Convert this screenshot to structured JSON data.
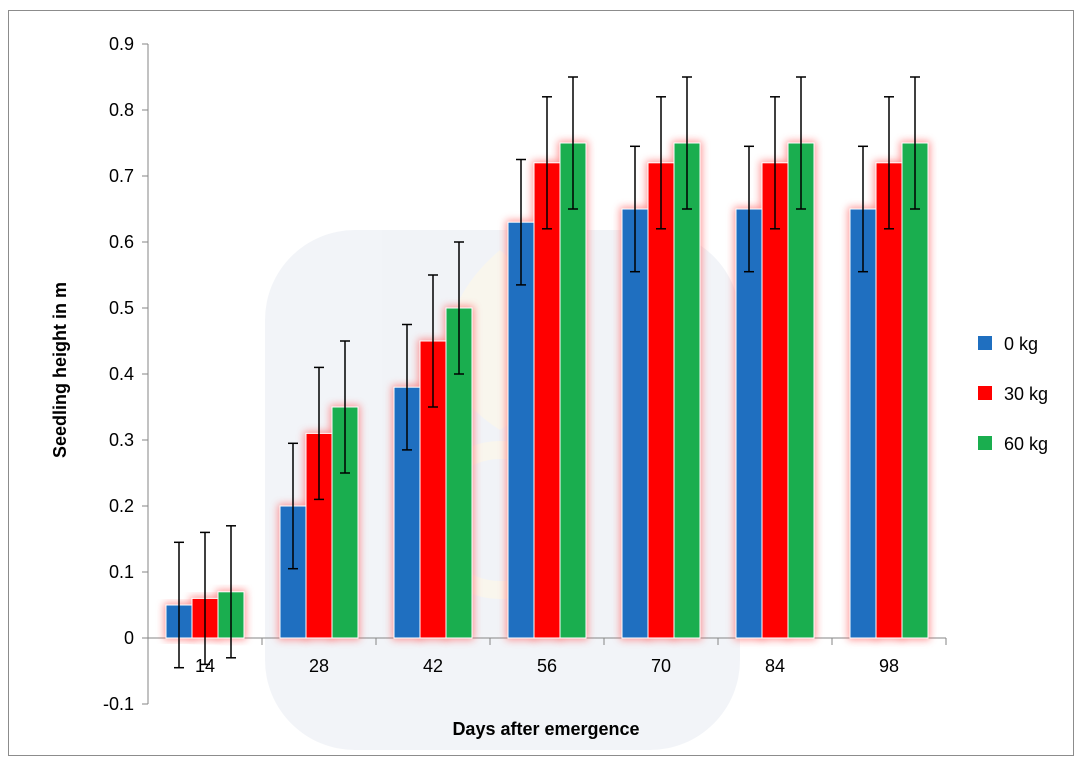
{
  "chart_data": {
    "type": "bar",
    "title": "",
    "xlabel": "Days after emergence",
    "ylabel": "Seedling height in m",
    "categories": [
      "14",
      "28",
      "42",
      "56",
      "70",
      "84",
      "98"
    ],
    "ylim": [
      -0.1,
      0.9
    ],
    "yticks": [
      "-0.1",
      "0",
      "0.1",
      "0.2",
      "0.3",
      "0.4",
      "0.5",
      "0.6",
      "0.7",
      "0.8",
      "0.9"
    ],
    "grid": false,
    "legend_position": "right",
    "series": [
      {
        "name": "0 kg",
        "color": "#1f6fc0",
        "values": [
          0.05,
          0.2,
          0.38,
          0.63,
          0.65,
          0.65,
          0.65
        ],
        "error": 0.095
      },
      {
        "name": "30 kg",
        "color": "#ff0000",
        "values": [
          0.06,
          0.31,
          0.45,
          0.72,
          0.72,
          0.72,
          0.72
        ],
        "error": 0.1
      },
      {
        "name": "60 kg",
        "color": "#1aae4f",
        "values": [
          0.07,
          0.35,
          0.5,
          0.75,
          0.75,
          0.75,
          0.75
        ],
        "error": 0.1
      }
    ]
  }
}
